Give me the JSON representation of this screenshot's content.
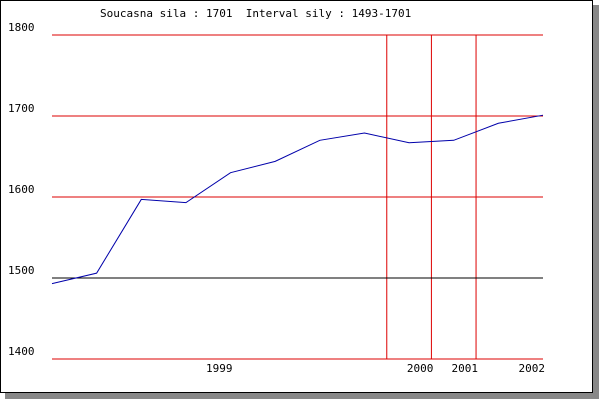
{
  "chart_data": {
    "type": "line",
    "title": "Soucasna sila : 1701  Interval sily : 1493-1701",
    "x": [
      0,
      1,
      2,
      3,
      4,
      5,
      6,
      7,
      8,
      9,
      10,
      11
    ],
    "series": [
      {
        "color": "#0000aa",
        "values": [
          1493,
          1506,
          1597,
          1593,
          1630,
          1644,
          1670,
          1679,
          1667,
          1670,
          1691,
          1701
        ]
      }
    ],
    "xlim": [
      0,
      11
    ],
    "xticks": [
      {
        "value": 4,
        "label": "1999"
      },
      {
        "value": 8.5,
        "label": "2000"
      },
      {
        "value": 9.5,
        "label": "2001"
      },
      {
        "value": 11,
        "label": "2002"
      }
    ],
    "vlines": [
      7.5,
      8.5,
      9.5
    ],
    "ylim": [
      1400,
      1800
    ],
    "yticks": [
      1400,
      1500,
      1600,
      1700,
      1800
    ],
    "grid": true,
    "grid_color": "#dd0000",
    "hline": {
      "value": 1500,
      "color": "#000000"
    }
  }
}
